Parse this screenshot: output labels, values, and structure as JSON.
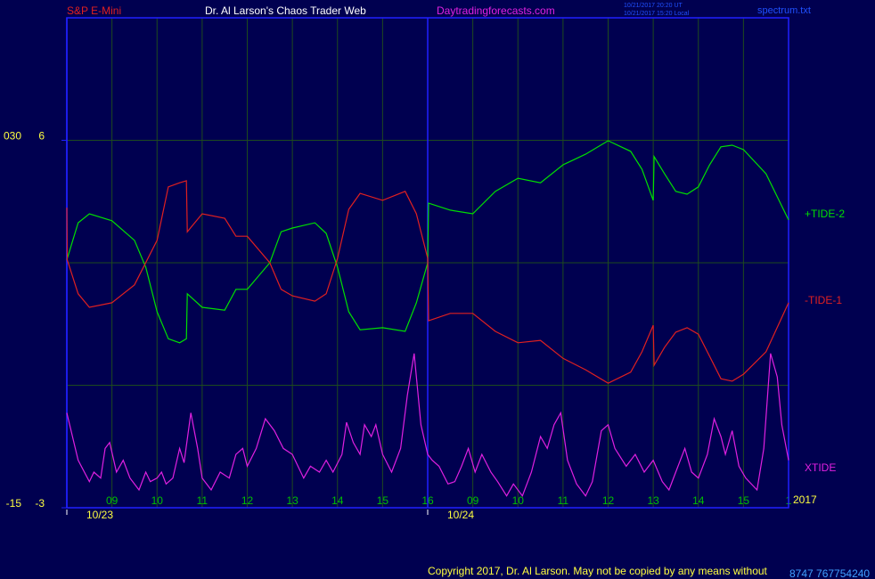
{
  "header": {
    "symbol": "S&P E-Mini",
    "site": "Dr. Al Larson's Chaos Trader Web",
    "url": "Daytradingforecasts.com",
    "time_ut": "10/21/2017 20:20 UT",
    "time_local": "10/21/2017 15:20 Local",
    "file": "spectrum.txt"
  },
  "footer": {
    "copyright": "Copyright 2017, Dr. Al Larson. May not be copied by any means without",
    "code": "8747 767754240"
  },
  "chart_data": {
    "type": "line",
    "xlim": [
      0,
      16
    ],
    "xticks": [
      {
        "value": 1,
        "label": "09"
      },
      {
        "value": 2,
        "label": "10"
      },
      {
        "value": 3,
        "label": "11"
      },
      {
        "value": 4,
        "label": "12"
      },
      {
        "value": 5,
        "label": "13"
      },
      {
        "value": 6,
        "label": "14"
      },
      {
        "value": 7,
        "label": "15"
      },
      {
        "value": 8,
        "label": "16"
      },
      {
        "value": 9,
        "label": "09"
      },
      {
        "value": 10,
        "label": "10"
      },
      {
        "value": 11,
        "label": "11"
      },
      {
        "value": 12,
        "label": "12"
      },
      {
        "value": 13,
        "label": "13"
      },
      {
        "value": 14,
        "label": "14"
      },
      {
        "value": 15,
        "label": "15"
      },
      {
        "value": 16,
        "label": "1"
      }
    ],
    "date_ticks": [
      {
        "value": 0,
        "label": "10/23"
      },
      {
        "value": 8,
        "label": "10/24"
      }
    ],
    "year": "2017",
    "ylim": [
      -3,
      9
    ],
    "yticks": [
      6,
      -3
    ],
    "grid_y": [
      6,
      3,
      0
    ],
    "y2lim": [
      -15,
      45
    ],
    "y2ticks": [
      {
        "value": 30,
        "label": "030"
      },
      -15
    ],
    "series": [
      {
        "name": "+TIDE-2",
        "color": "#00e000",
        "x": [
          0,
          0.25,
          0.5,
          1,
          1.5,
          1.75,
          2,
          2.25,
          2.5,
          2.65,
          2.67,
          3,
          3.5,
          3.75,
          4,
          4.5,
          4.75,
          5,
          5.5,
          5.75,
          6,
          6.25,
          6.5,
          7,
          7.5,
          7.75,
          8,
          8.02,
          8.5,
          9,
          9.5,
          10,
          10.5,
          11,
          11.5,
          12,
          12.5,
          12.75,
          13,
          13.02,
          13.25,
          13.5,
          13.75,
          14,
          14.25,
          14.5,
          14.75,
          15,
          15.5,
          16
        ],
        "values": [
          3.07,
          3.98,
          4.2,
          4.03,
          3.55,
          2.89,
          1.8,
          1.14,
          1.04,
          1.14,
          2.24,
          1.91,
          1.84,
          2.35,
          2.35,
          3.0,
          3.76,
          3.85,
          3.98,
          3.72,
          2.89,
          1.8,
          1.36,
          1.41,
          1.32,
          2.02,
          3.0,
          4.46,
          4.29,
          4.2,
          4.75,
          5.07,
          4.96,
          5.4,
          5.66,
          5.99,
          5.73,
          5.29,
          4.53,
          5.6,
          5.18,
          4.75,
          4.68,
          4.86,
          5.4,
          5.84,
          5.88,
          5.77,
          5.18,
          4.05
        ]
      },
      {
        "name": "-TIDE-1",
        "color": "#e02020",
        "x": [
          0,
          0.01,
          0.25,
          0.5,
          1,
          1.5,
          2,
          2.25,
          2.5,
          2.65,
          2.67,
          3,
          3.5,
          3.75,
          4,
          4.5,
          4.75,
          5,
          5.5,
          5.75,
          6,
          6.25,
          6.5,
          7,
          7.5,
          7.75,
          8,
          8.02,
          8.5,
          9,
          9.5,
          10,
          10.5,
          11,
          11.5,
          12,
          12.5,
          12.75,
          13,
          13.02,
          13.25,
          13.5,
          13.75,
          14,
          14.25,
          14.5,
          14.75,
          15,
          15.5,
          16
        ],
        "values": [
          4.35,
          3.07,
          2.24,
          1.91,
          2.02,
          2.46,
          3.55,
          4.86,
          4.96,
          5.01,
          3.76,
          4.2,
          4.09,
          3.65,
          3.65,
          3.0,
          2.35,
          2.19,
          2.06,
          2.24,
          3.11,
          4.31,
          4.7,
          4.53,
          4.75,
          4.2,
          3.11,
          1.58,
          1.76,
          1.76,
          1.32,
          1.04,
          1.1,
          0.66,
          0.38,
          0.05,
          0.32,
          0.82,
          1.47,
          0.49,
          0.93,
          1.3,
          1.41,
          1.25,
          0.71,
          0.16,
          0.1,
          0.27,
          0.82,
          2.02
        ]
      },
      {
        "name": "XTIDE",
        "color": "#e020e0",
        "axis": "y2",
        "x": [
          0,
          0.25,
          0.5,
          0.6,
          0.75,
          0.85,
          0.95,
          1.1,
          1.25,
          1.4,
          1.6,
          1.75,
          1.85,
          2,
          2.1,
          2.2,
          2.35,
          2.5,
          2.6,
          2.75,
          2.9,
          3,
          3.2,
          3.4,
          3.6,
          3.75,
          3.9,
          4,
          4.2,
          4.4,
          4.6,
          4.8,
          5,
          5.25,
          5.4,
          5.6,
          5.75,
          5.9,
          6.1,
          6.2,
          6.35,
          6.5,
          6.6,
          6.75,
          6.85,
          7,
          7.2,
          7.4,
          7.55,
          7.7,
          7.85,
          8,
          8.1,
          8.25,
          8.45,
          8.6,
          8.75,
          8.9,
          9.05,
          9.2,
          9.4,
          9.55,
          9.75,
          9.9,
          10.1,
          10.3,
          10.5,
          10.65,
          10.8,
          10.95,
          11.1,
          11.3,
          11.5,
          11.65,
          11.85,
          12,
          12.15,
          12.4,
          12.6,
          12.8,
          13,
          13.2,
          13.35,
          13.5,
          13.7,
          13.85,
          14,
          14.2,
          14.35,
          14.5,
          14.6,
          14.75,
          14.9,
          15.05,
          15.3,
          15.45,
          15.6,
          15.75,
          15.85,
          16
        ],
        "values": [
          -3.38,
          -9.19,
          -11.8,
          -10.64,
          -11.37,
          -7.74,
          -7.01,
          -10.64,
          -9.19,
          -11.37,
          -12.82,
          -10.64,
          -11.8,
          -11.37,
          -10.64,
          -12.09,
          -11.37,
          -7.74,
          -9.48,
          -3.38,
          -7.74,
          -11.37,
          -12.82,
          -10.64,
          -11.37,
          -8.46,
          -7.74,
          -9.92,
          -7.74,
          -4.1,
          -5.56,
          -7.74,
          -8.46,
          -11.37,
          -9.92,
          -10.64,
          -9.19,
          -10.64,
          -8.46,
          -4.54,
          -7.01,
          -8.46,
          -4.83,
          -6.28,
          -4.83,
          -8.46,
          -10.64,
          -7.74,
          -1.2,
          3.89,
          -4.83,
          -8.46,
          -9.19,
          -9.92,
          -12.09,
          -11.8,
          -9.92,
          -7.74,
          -10.64,
          -8.46,
          -10.64,
          -11.8,
          -13.55,
          -12.09,
          -13.55,
          -10.64,
          -6.28,
          -7.74,
          -4.83,
          -3.38,
          -9.19,
          -12.09,
          -13.55,
          -11.8,
          -5.56,
          -4.83,
          -7.74,
          -9.92,
          -8.46,
          -10.64,
          -9.19,
          -11.8,
          -12.82,
          -10.64,
          -7.74,
          -10.64,
          -11.37,
          -8.46,
          -4.1,
          -6.28,
          -8.46,
          -5.56,
          -9.92,
          -11.37,
          -12.82,
          -7.74,
          3.89,
          1.02,
          -4.83,
          -9.19
        ]
      }
    ]
  }
}
